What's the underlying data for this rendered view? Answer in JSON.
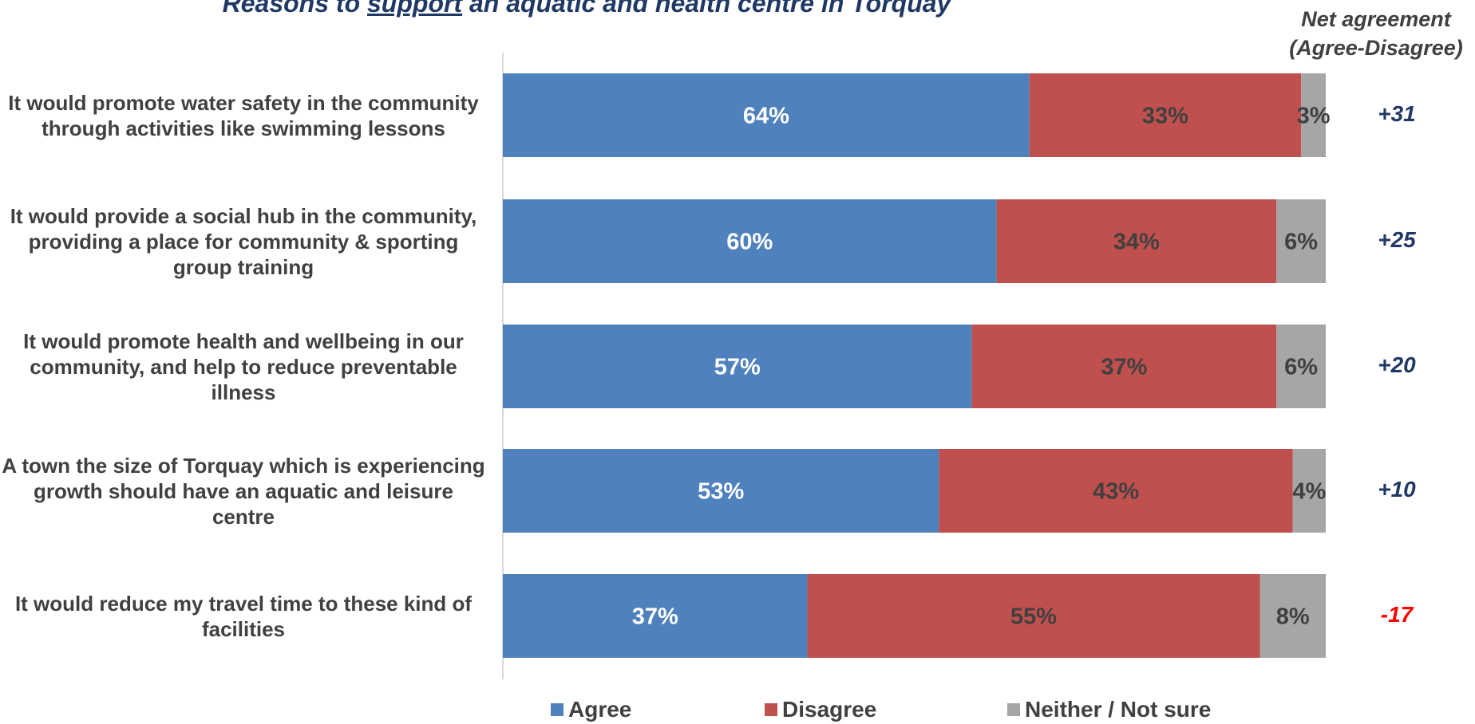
{
  "title": {
    "prefix": "Reasons to ",
    "emphasis": "support",
    "suffix": " an aquatic and health centre in Torquay"
  },
  "net_header": {
    "line1": "Net agreement",
    "line2": "(Agree-Disagree)"
  },
  "legend": {
    "agree": "Agree",
    "disagree": "Disagree",
    "neither": "Neither / Not sure"
  },
  "colors": {
    "agree": "#4f81bd",
    "disagree": "#c0504d",
    "neither": "#a6a6a6",
    "positive_net": "#1f3864",
    "negative_net": "#ff0000"
  },
  "chart_data": {
    "type": "bar",
    "orientation": "horizontal",
    "stacked": true,
    "title": "Reasons to support an aquatic and health centre in Torquay",
    "xlim": [
      0,
      100
    ],
    "grid": false,
    "legend_position": "bottom",
    "categories": [
      "It would promote water safety in the community through activities like swimming lessons",
      "It would provide a social hub in the community, providing a place for community & sporting group training",
      "It would promote health and wellbeing in our community, and help to reduce preventable illness",
      "A town the size of Torquay which is experiencing growth should have an aquatic and leisure centre",
      "It would reduce my travel time to these kind of facilities"
    ],
    "series": [
      {
        "name": "Agree",
        "values": [
          64,
          60,
          57,
          53,
          37
        ]
      },
      {
        "name": "Disagree",
        "values": [
          33,
          34,
          37,
          43,
          55
        ]
      },
      {
        "name": "Neither / Not sure",
        "values": [
          3,
          6,
          6,
          4,
          8
        ]
      }
    ],
    "data_labels": [
      [
        "64%",
        "33%",
        "3%"
      ],
      [
        "60%",
        "34%",
        "6%"
      ],
      [
        "57%",
        "37%",
        "6%"
      ],
      [
        "53%",
        "43%",
        "4%"
      ],
      [
        "37%",
        "55%",
        "8%"
      ]
    ],
    "net_agreement": [
      "+31",
      "+25",
      "+20",
      "+10",
      "-17"
    ]
  }
}
